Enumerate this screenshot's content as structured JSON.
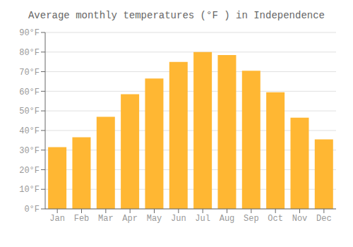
{
  "chart_data": {
    "type": "bar",
    "title": "Average monthly temperatures (°F ) in Independence",
    "categories": [
      "Jan",
      "Feb",
      "Mar",
      "Apr",
      "May",
      "Jun",
      "Jul",
      "Aug",
      "Sep",
      "Oct",
      "Nov",
      "Dec"
    ],
    "values": [
      31.5,
      36.5,
      47,
      58.5,
      66.5,
      75,
      80,
      78.5,
      70.5,
      59.5,
      46.5,
      35.5
    ],
    "color": "#FFB733",
    "ylim": [
      0,
      90
    ],
    "yticks": [
      {
        "value": 0,
        "label": "0°F"
      },
      {
        "value": 10,
        "label": "10°F"
      },
      {
        "value": 20,
        "label": "20°F"
      },
      {
        "value": 30,
        "label": "30°F"
      },
      {
        "value": 40,
        "label": "40°F"
      },
      {
        "value": 50,
        "label": "50°F"
      },
      {
        "value": 60,
        "label": "60°F"
      },
      {
        "value": 70,
        "label": "70°F"
      },
      {
        "value": 80,
        "label": "80°F"
      },
      {
        "value": 90,
        "label": "90°F"
      }
    ],
    "grid": true
  }
}
